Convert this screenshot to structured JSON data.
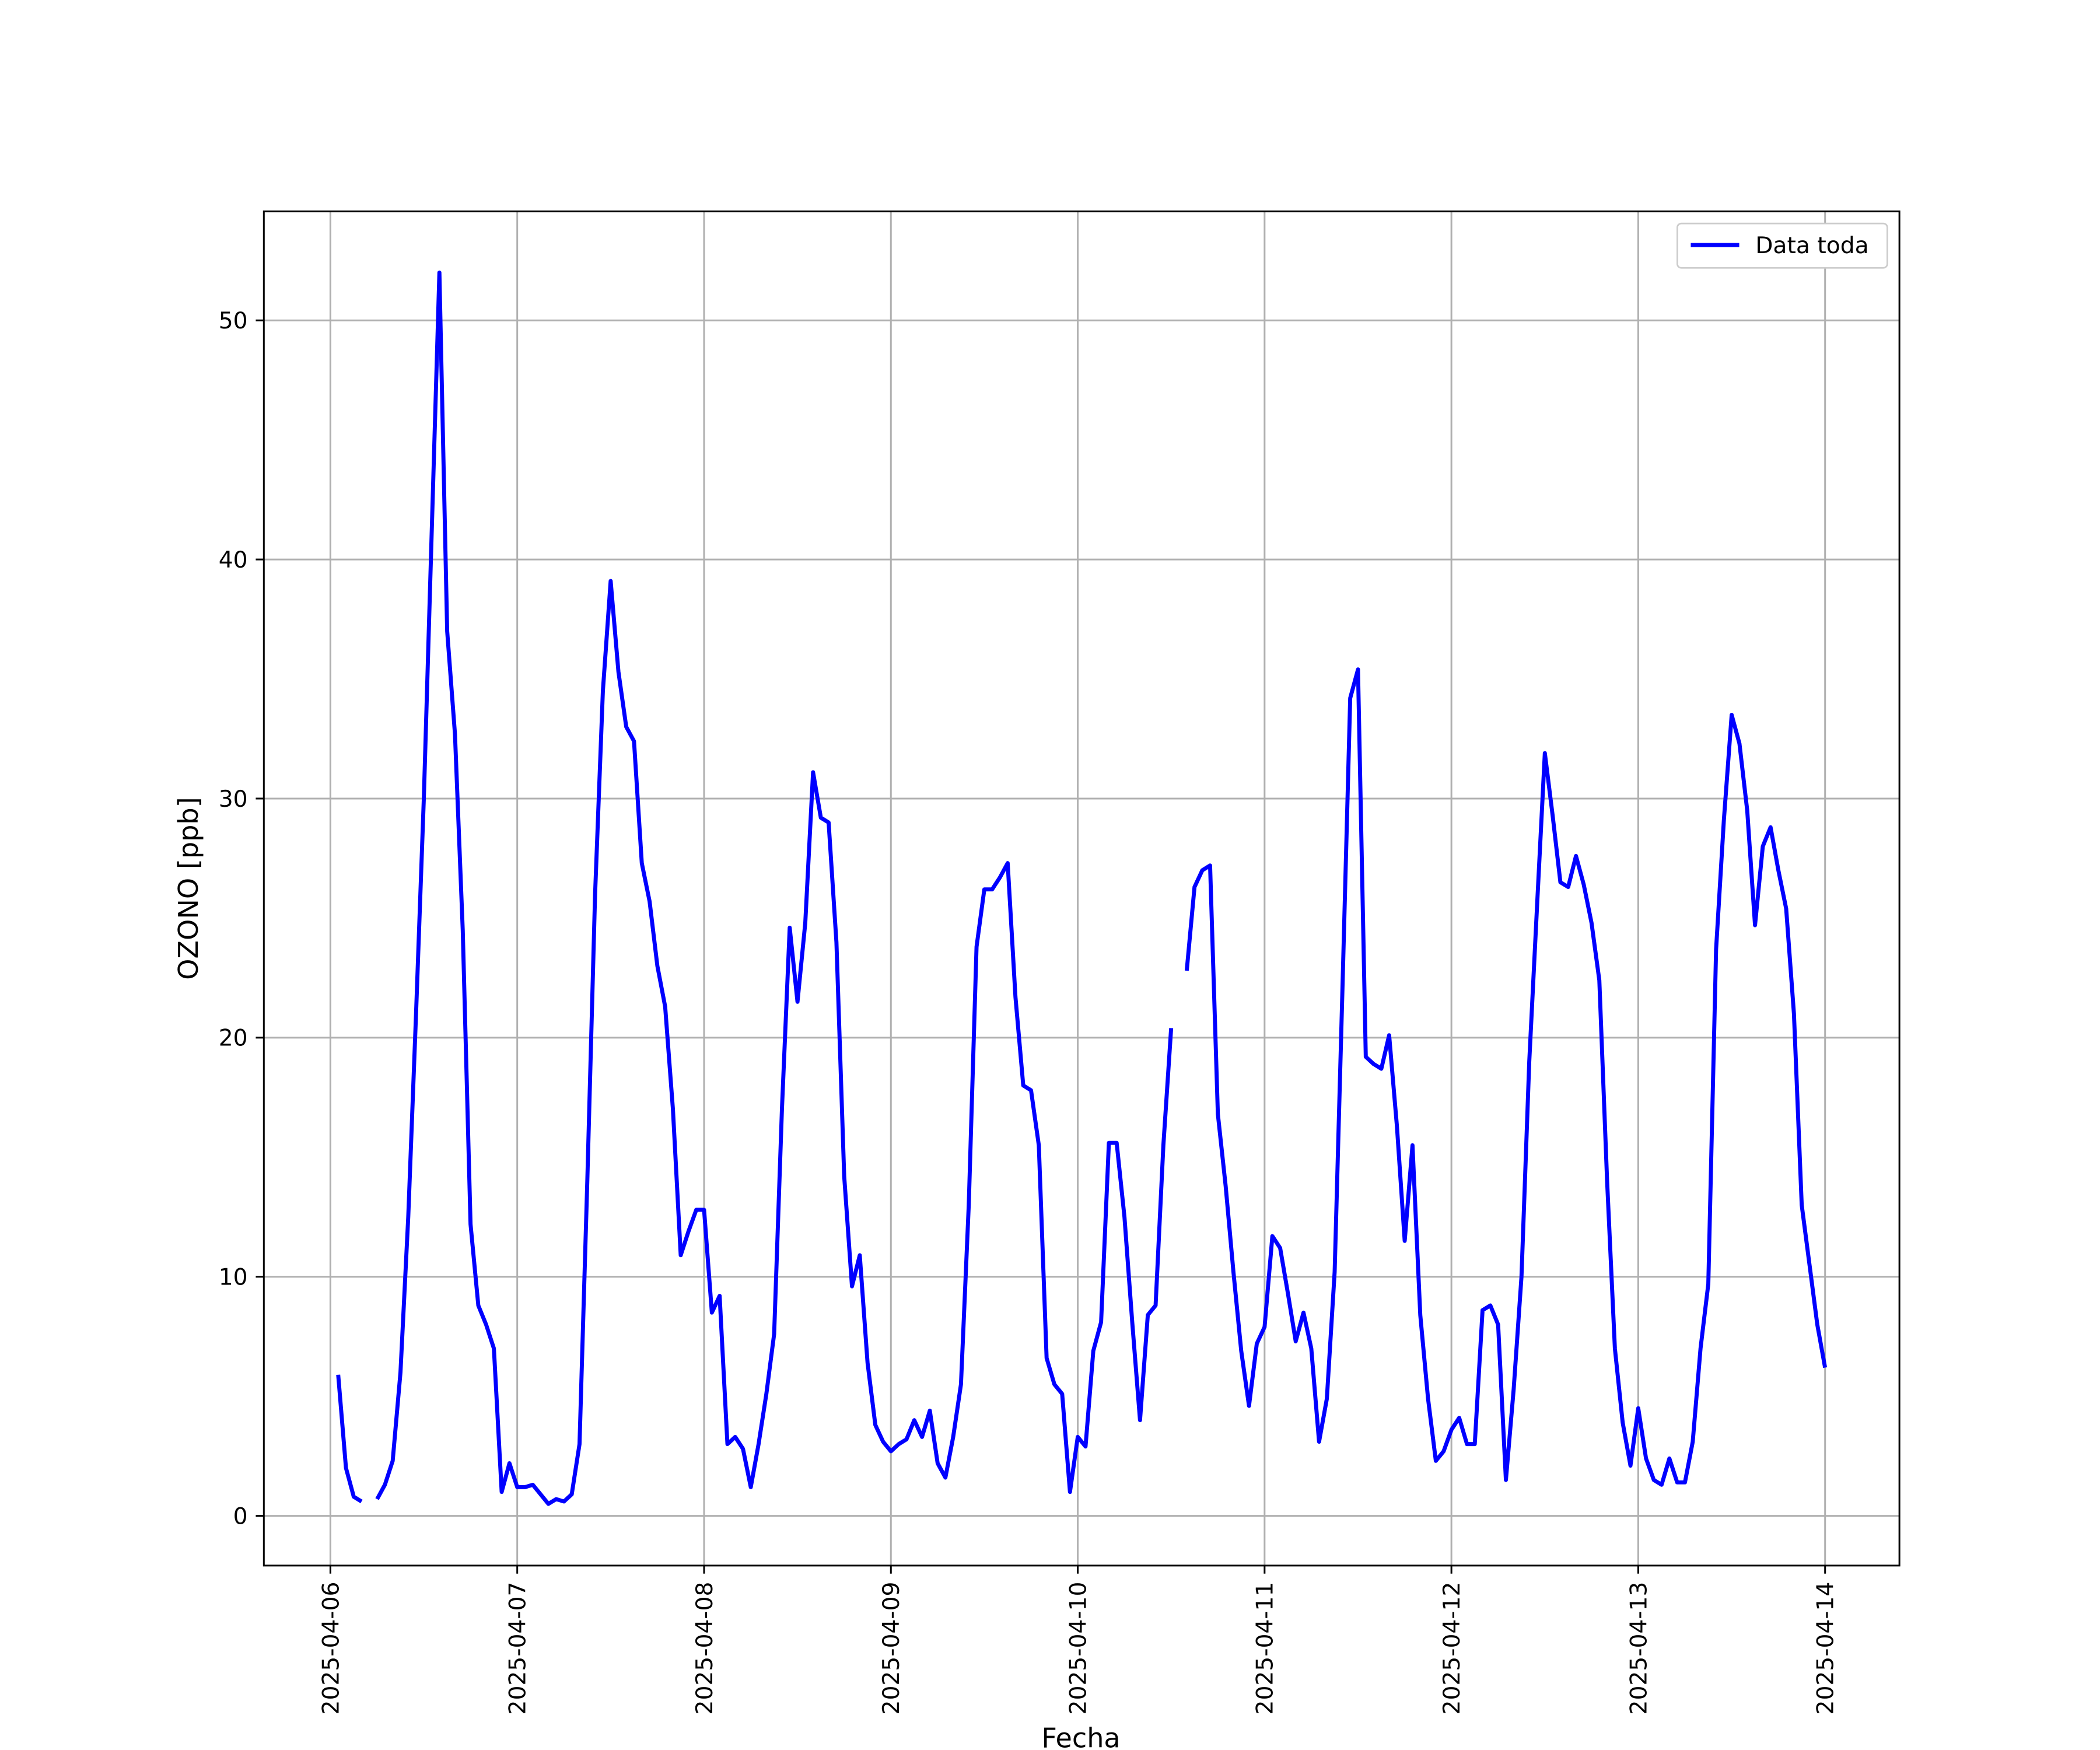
{
  "chart_data": {
    "type": "line",
    "xlabel": "Fecha",
    "ylabel": "OZONO [ppb]",
    "xlim": [
      "2025-04-05 15:27",
      "2025-04-14 09:33"
    ],
    "xticks": [
      "2025-04-06",
      "2025-04-07",
      "2025-04-08",
      "2025-04-09",
      "2025-04-10",
      "2025-04-11",
      "2025-04-12",
      "2025-04-13",
      "2025-04-14"
    ],
    "ylim": [
      -2.08,
      54.56
    ],
    "yticks": [
      0,
      10,
      20,
      30,
      40,
      50
    ],
    "grid": true,
    "legend": "upper right",
    "series": [
      {
        "name": "Data toda",
        "color": "#0000ff",
        "x": [
          "2025-04-06 01:00",
          "2025-04-06 02:00",
          "2025-04-06 03:00",
          "2025-04-06 04:00",
          "2025-04-06 05:00",
          "2025-04-06 06:00",
          "2025-04-06 07:00",
          "2025-04-06 08:00",
          "2025-04-06 09:00",
          "2025-04-06 10:00",
          "2025-04-06 11:00",
          "2025-04-06 12:00",
          "2025-04-06 13:00",
          "2025-04-06 14:00",
          "2025-04-06 15:00",
          "2025-04-06 16:00",
          "2025-04-06 17:00",
          "2025-04-06 18:00",
          "2025-04-06 19:00",
          "2025-04-06 20:00",
          "2025-04-06 21:00",
          "2025-04-06 22:00",
          "2025-04-06 23:00",
          "2025-04-07 00:00",
          "2025-04-07 01:00",
          "2025-04-07 02:00",
          "2025-04-07 03:00",
          "2025-04-07 04:00",
          "2025-04-07 05:00",
          "2025-04-07 06:00",
          "2025-04-07 07:00",
          "2025-04-07 08:00",
          "2025-04-07 09:00",
          "2025-04-07 10:00",
          "2025-04-07 11:00",
          "2025-04-07 12:00",
          "2025-04-07 13:00",
          "2025-04-07 14:00",
          "2025-04-07 15:00",
          "2025-04-07 16:00",
          "2025-04-07 17:00",
          "2025-04-07 18:00",
          "2025-04-07 19:00",
          "2025-04-07 20:00",
          "2025-04-07 21:00",
          "2025-04-07 22:00",
          "2025-04-07 23:00",
          "2025-04-08 00:00",
          "2025-04-08 01:00",
          "2025-04-08 02:00",
          "2025-04-08 03:00",
          "2025-04-08 04:00",
          "2025-04-08 05:00",
          "2025-04-08 06:00",
          "2025-04-08 07:00",
          "2025-04-08 08:00",
          "2025-04-08 09:00",
          "2025-04-08 10:00",
          "2025-04-08 11:00",
          "2025-04-08 12:00",
          "2025-04-08 13:00",
          "2025-04-08 14:00",
          "2025-04-08 15:00",
          "2025-04-08 16:00",
          "2025-04-08 17:00",
          "2025-04-08 18:00",
          "2025-04-08 19:00",
          "2025-04-08 20:00",
          "2025-04-08 21:00",
          "2025-04-08 22:00",
          "2025-04-08 23:00",
          "2025-04-09 00:00",
          "2025-04-09 01:00",
          "2025-04-09 02:00",
          "2025-04-09 03:00",
          "2025-04-09 04:00",
          "2025-04-09 05:00",
          "2025-04-09 06:00",
          "2025-04-09 07:00",
          "2025-04-09 08:00",
          "2025-04-09 09:00",
          "2025-04-09 10:00",
          "2025-04-09 11:00",
          "2025-04-09 12:00",
          "2025-04-09 13:00",
          "2025-04-09 14:00",
          "2025-04-09 15:00",
          "2025-04-09 16:00",
          "2025-04-09 17:00",
          "2025-04-09 18:00",
          "2025-04-09 19:00",
          "2025-04-09 20:00",
          "2025-04-09 21:00",
          "2025-04-09 22:00",
          "2025-04-09 23:00",
          "2025-04-10 00:00",
          "2025-04-10 01:00",
          "2025-04-10 02:00",
          "2025-04-10 03:00",
          "2025-04-10 04:00",
          "2025-04-10 05:00",
          "2025-04-10 06:00",
          "2025-04-10 07:00",
          "2025-04-10 08:00",
          "2025-04-10 09:00",
          "2025-04-10 10:00",
          "2025-04-10 11:00",
          "2025-04-10 12:00",
          "2025-04-10 13:00",
          "2025-04-10 14:00",
          "2025-04-10 15:00",
          "2025-04-10 16:00",
          "2025-04-10 17:00",
          "2025-04-10 18:00",
          "2025-04-10 19:00",
          "2025-04-10 20:00",
          "2025-04-10 21:00",
          "2025-04-10 22:00",
          "2025-04-10 23:00",
          "2025-04-11 00:00",
          "2025-04-11 01:00",
          "2025-04-11 02:00",
          "2025-04-11 03:00",
          "2025-04-11 04:00",
          "2025-04-11 05:00",
          "2025-04-11 06:00",
          "2025-04-11 07:00",
          "2025-04-11 08:00",
          "2025-04-11 09:00",
          "2025-04-11 10:00",
          "2025-04-11 11:00",
          "2025-04-11 12:00",
          "2025-04-11 13:00",
          "2025-04-11 14:00",
          "2025-04-11 15:00",
          "2025-04-11 16:00",
          "2025-04-11 17:00",
          "2025-04-11 18:00",
          "2025-04-11 19:00",
          "2025-04-11 20:00",
          "2025-04-11 21:00",
          "2025-04-11 22:00",
          "2025-04-11 23:00",
          "2025-04-12 00:00",
          "2025-04-12 01:00",
          "2025-04-12 02:00",
          "2025-04-12 03:00",
          "2025-04-12 04:00",
          "2025-04-12 05:00",
          "2025-04-12 06:00",
          "2025-04-12 07:00",
          "2025-04-12 08:00",
          "2025-04-12 09:00",
          "2025-04-12 10:00",
          "2025-04-12 11:00",
          "2025-04-12 12:00",
          "2025-04-12 13:00",
          "2025-04-12 14:00",
          "2025-04-12 15:00",
          "2025-04-12 16:00",
          "2025-04-12 17:00",
          "2025-04-12 18:00",
          "2025-04-12 19:00",
          "2025-04-12 20:00",
          "2025-04-12 21:00",
          "2025-04-12 22:00",
          "2025-04-12 23:00",
          "2025-04-13 00:00",
          "2025-04-13 01:00",
          "2025-04-13 02:00",
          "2025-04-13 03:00",
          "2025-04-13 04:00",
          "2025-04-13 05:00",
          "2025-04-13 06:00",
          "2025-04-13 07:00",
          "2025-04-13 08:00",
          "2025-04-13 09:00",
          "2025-04-13 10:00",
          "2025-04-13 11:00",
          "2025-04-13 12:00",
          "2025-04-13 13:00",
          "2025-04-13 14:00",
          "2025-04-13 15:00",
          "2025-04-13 16:00",
          "2025-04-13 17:00",
          "2025-04-13 18:00",
          "2025-04-13 19:00",
          "2025-04-13 20:00",
          "2025-04-13 21:00",
          "2025-04-13 22:00",
          "2025-04-13 23:00",
          "2025-04-14 00:00"
        ],
        "values": [
          5.9,
          2.0,
          0.8,
          0.6,
          null,
          0.7,
          1.3,
          2.3,
          6.0,
          12.5,
          21,
          30,
          41,
          52,
          37,
          32.7,
          24.5,
          12.2,
          8.8,
          8.0,
          7.0,
          1.0,
          2.2,
          1.2,
          1.2,
          1.3,
          0.9,
          0.5,
          0.7,
          0.6,
          0.9,
          3.0,
          14,
          26,
          34.5,
          39.1,
          35.3,
          33,
          32.4,
          27.3,
          25.7,
          23,
          21.3,
          17,
          10.9,
          11.9,
          12.8,
          12.8,
          8.5,
          9.2,
          3.0,
          3.3,
          2.8,
          1.2,
          3.0,
          5.1,
          7.6,
          17,
          24.6,
          21.5,
          24.8,
          31.1,
          29.2,
          29,
          24,
          14.2,
          9.6,
          10.9,
          6.4,
          3.8,
          3.1,
          2.7,
          3.0,
          3.2,
          4.0,
          3.3,
          4.4,
          2.2,
          1.6,
          3.3,
          5.5,
          13,
          23.8,
          26.2,
          26.2,
          26.7,
          27.3,
          21.7,
          18,
          17.8,
          15.5,
          6.6,
          5.5,
          5.1,
          1.0,
          3.3,
          2.9,
          6.9,
          8.1,
          15.6,
          15.6,
          12.5,
          8.1,
          4.0,
          8.4,
          8.8,
          15.5,
          20.4,
          null,
          22.8,
          26.3,
          27,
          27.2,
          16.8,
          13.8,
          10.2,
          6.9,
          4.6,
          7.2,
          7.9,
          11.7,
          11.2,
          9.3,
          7.3,
          8.5,
          7.0,
          3.1,
          4.9,
          10.2,
          22,
          34.2,
          35.4,
          19.2,
          18.9,
          18.7,
          20.1,
          16.3,
          11.5,
          15.5,
          8.4,
          4.9,
          2.3,
          2.7,
          3.6,
          4.1,
          3.0,
          3.0,
          8.6,
          8.8,
          8.0,
          1.5,
          5.3,
          10,
          19,
          25.5,
          31.9,
          29.3,
          26.5,
          26.3,
          27.6,
          26.4,
          24.8,
          22.4,
          14,
          7.0,
          3.9,
          2.1,
          4.5,
          2.4,
          1.5,
          1.3,
          2.4,
          1.4,
          1.4,
          3.1,
          7.0,
          9.7,
          23.7,
          29.1,
          33.5,
          32.3,
          29.5,
          24.7,
          28,
          28.8,
          27,
          25.4,
          21,
          13,
          10.5,
          8.0,
          6.2
        ]
      }
    ]
  }
}
